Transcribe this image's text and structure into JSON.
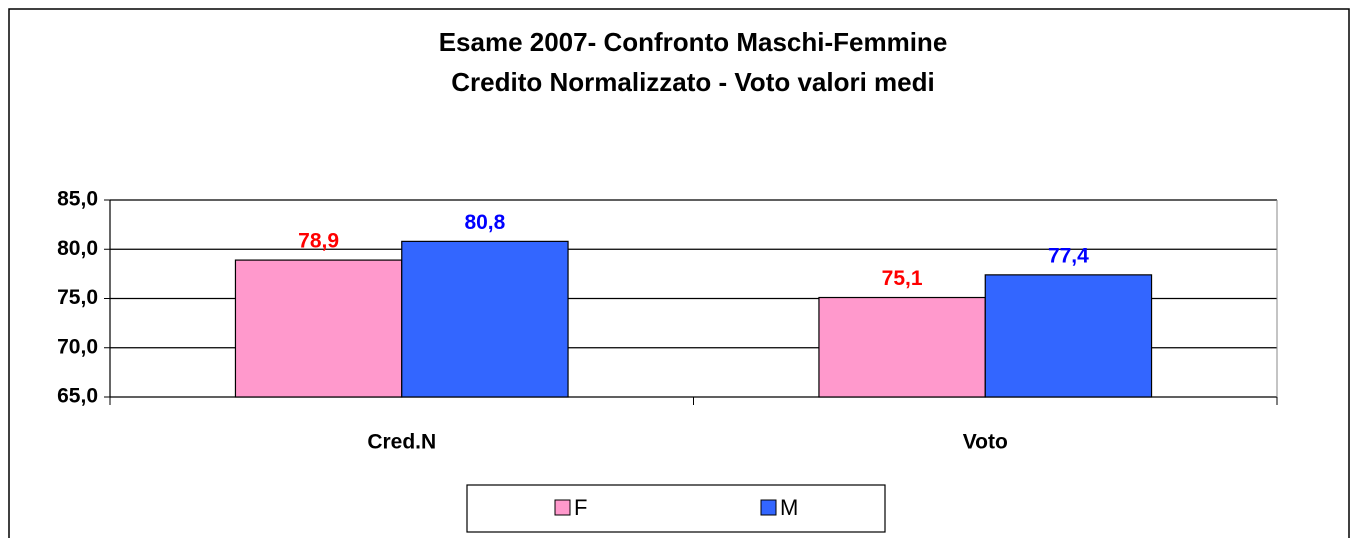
{
  "chart_data": {
    "type": "bar",
    "title": "Esame 2007- Confronto Maschi-Femmine",
    "subtitle": "Credito Normalizzato - Voto   valori medi",
    "categories": [
      "Cred.N",
      "Voto"
    ],
    "series": [
      {
        "name": "F",
        "color": "#ff99cc",
        "label_color": "#ff0000",
        "values": [
          78.9,
          75.1
        ],
        "value_labels": [
          "78,9",
          "75,1"
        ]
      },
      {
        "name": "M",
        "color": "#3366ff",
        "label_color": "#0000ff",
        "values": [
          80.8,
          77.4
        ],
        "value_labels": [
          "80,8",
          "77,4"
        ]
      }
    ],
    "ylim": [
      65,
      85
    ],
    "yticks": [
      {
        "value": 65,
        "label": "65,0"
      },
      {
        "value": 70,
        "label": "70,0"
      },
      {
        "value": 75,
        "label": "75,0"
      },
      {
        "value": 80,
        "label": "80,0"
      },
      {
        "value": 85,
        "label": "85,0"
      }
    ],
    "grid": true,
    "legend": "bottom"
  }
}
